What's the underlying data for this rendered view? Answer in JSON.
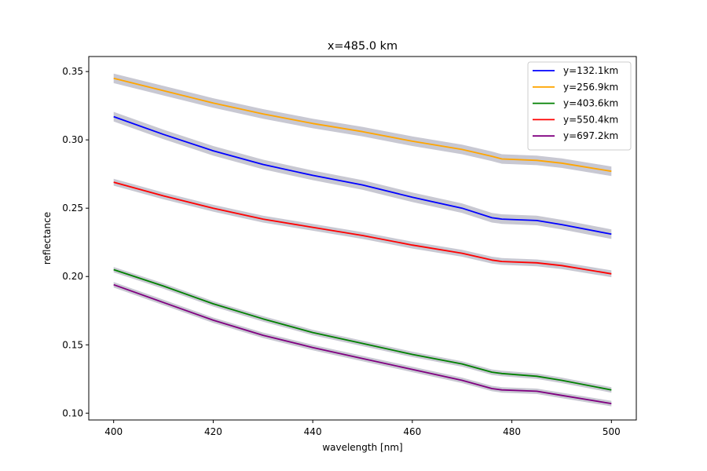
{
  "chart_data": {
    "type": "line",
    "title": "x=485.0 km",
    "xlabel": "wavelength [nm]",
    "ylabel": "reflectance",
    "xlim": [
      395,
      505
    ],
    "ylim": [
      0.095,
      0.361
    ],
    "xticks": [
      400,
      420,
      440,
      460,
      480,
      500
    ],
    "xtick_labels": [
      "400",
      "420",
      "440",
      "460",
      "480",
      "500"
    ],
    "yticks": [
      0.1,
      0.15,
      0.2,
      0.25,
      0.3,
      0.35
    ],
    "ytick_labels": [
      "0.10",
      "0.15",
      "0.20",
      "0.25",
      "0.30",
      "0.35"
    ],
    "grid": false,
    "legend_position": "top-right",
    "uncertainty_band_color": "#c8c8d2",
    "x": [
      400,
      410,
      420,
      430,
      440,
      450,
      460,
      470,
      476,
      478,
      485,
      490,
      500
    ],
    "series": [
      {
        "name": "y=132.1km",
        "color": "#0000ff",
        "band": 0.0035,
        "values": [
          0.317,
          0.304,
          0.292,
          0.282,
          0.274,
          0.267,
          0.258,
          0.25,
          0.243,
          0.242,
          0.241,
          0.238,
          0.231
        ]
      },
      {
        "name": "y=256.9km",
        "color": "#ffa500",
        "band": 0.0035,
        "values": [
          0.345,
          0.336,
          0.327,
          0.319,
          0.312,
          0.306,
          0.299,
          0.293,
          0.288,
          0.286,
          0.285,
          0.283,
          0.277
        ]
      },
      {
        "name": "y=403.6km",
        "color": "#008000",
        "band": 0.002,
        "values": [
          0.205,
          0.193,
          0.18,
          0.169,
          0.159,
          0.151,
          0.143,
          0.136,
          0.13,
          0.129,
          0.127,
          0.124,
          0.117
        ]
      },
      {
        "name": "y=550.4km",
        "color": "#ff0000",
        "band": 0.0025,
        "values": [
          0.269,
          0.259,
          0.25,
          0.242,
          0.236,
          0.23,
          0.223,
          0.217,
          0.212,
          0.211,
          0.21,
          0.208,
          0.202
        ]
      },
      {
        "name": "y=697.2km",
        "color": "#800080",
        "band": 0.002,
        "values": [
          0.194,
          0.181,
          0.168,
          0.157,
          0.148,
          0.14,
          0.132,
          0.124,
          0.118,
          0.117,
          0.116,
          0.113,
          0.107
        ]
      }
    ]
  }
}
